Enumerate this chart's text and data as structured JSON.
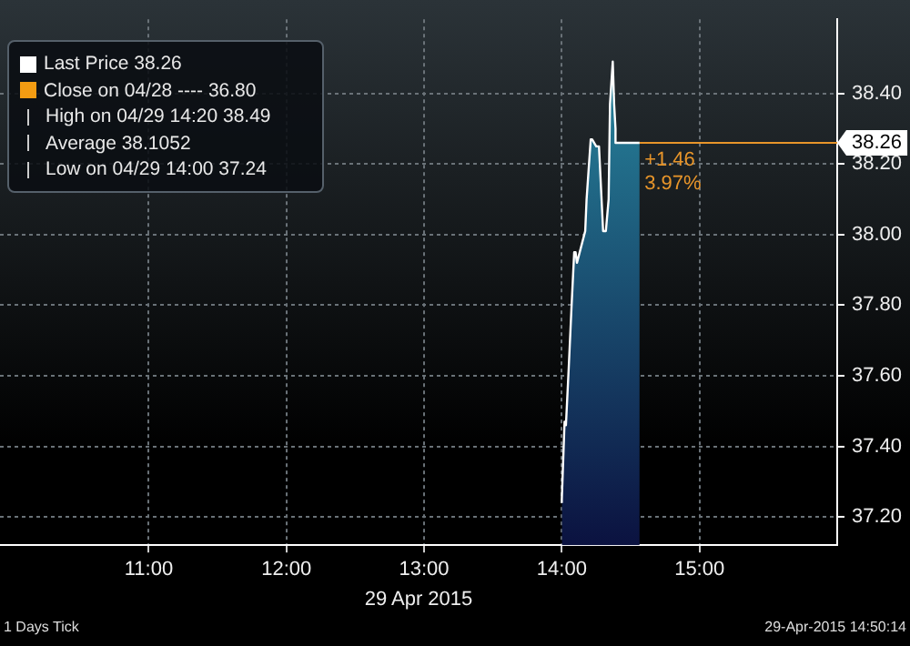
{
  "chart_data": {
    "type": "area",
    "xlabel": "29 Apr 2015",
    "x": [
      14.0,
      14.0,
      14.02,
      14.03,
      14.05,
      14.07,
      14.09,
      14.1,
      14.11,
      14.17,
      14.18,
      14.21,
      14.22,
      14.25,
      14.27,
      14.3,
      14.32,
      14.34,
      14.35,
      14.37,
      14.38,
      14.39,
      14.39,
      14.565
    ],
    "series": [
      {
        "color": "#ffffff",
        "values": [
          37.24,
          37.25,
          37.47,
          37.46,
          37.62,
          37.79,
          37.95,
          37.95,
          37.92,
          38.01,
          38.1,
          38.27,
          38.27,
          38.25,
          38.25,
          38.01,
          38.01,
          38.1,
          38.37,
          38.49,
          38.37,
          38.3,
          38.26,
          38.26
        ]
      }
    ],
    "xlim": [
      9.92,
      16.0
    ],
    "xticks": [
      {
        "value": 11,
        "label": "11:00"
      },
      {
        "value": 12,
        "label": "12:00"
      },
      {
        "value": 13,
        "label": "13:00"
      },
      {
        "value": 14,
        "label": "14:00"
      },
      {
        "value": 15,
        "label": "15:00"
      }
    ],
    "ylim": [
      37.12,
      38.61
    ],
    "yticks": [
      {
        "value": 37.2,
        "label": "37.20"
      },
      {
        "value": 37.4,
        "label": "37.40"
      },
      {
        "value": 37.6,
        "label": "37.60"
      },
      {
        "value": 37.8,
        "label": "37.80"
      },
      {
        "value": 38.0,
        "label": "38.00"
      },
      {
        "value": 38.2,
        "label": "38.20"
      },
      {
        "value": 38.4,
        "label": "38.40"
      }
    ],
    "grid": true,
    "ref_lines": [
      {
        "axis": "y",
        "value": 38.26,
        "label": "38.26",
        "color": "#e8952a"
      }
    ],
    "annotations": [
      "Last Price 38.26",
      "Close on 04/28 ---- 36.80",
      "High on 04/29 14:20 38.49",
      "Average 38.1052",
      "Low on 04/29 14:00 37.24",
      "1 Days Tick",
      "29-Apr-2015 14:50:14",
      {
        "text": "+1.46",
        "x": 14.6,
        "y": 38.21
      },
      {
        "text": "3.97%",
        "x": 14.6,
        "y": 38.145
      }
    ]
  }
}
